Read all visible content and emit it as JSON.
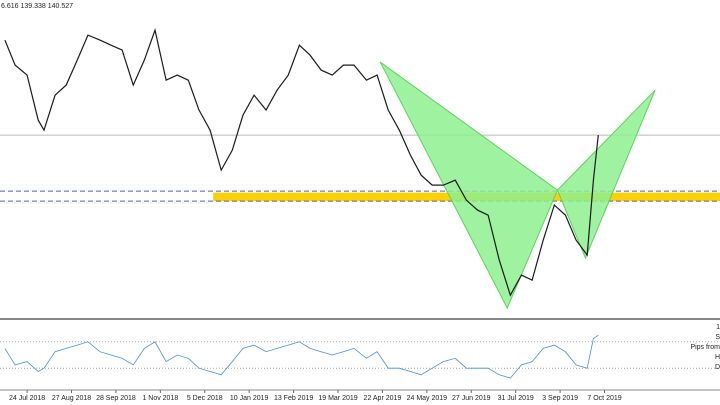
{
  "chart_data": {
    "type": "line",
    "info_text": "6.616 139.338 140.527",
    "color": "#1a1a1a",
    "x": [
      -0.5,
      -0.27,
      0,
      0.25,
      0.38,
      0.63,
      0.88,
      1.13,
      1.37,
      1.64,
      1.89,
      2.14,
      2.39,
      2.64,
      2.88,
      3.13,
      3.38,
      3.63,
      3.87,
      4.12,
      4.37,
      4.62,
      4.86,
      5.11,
      5.38,
      5.63,
      5.88,
      6.13,
      6.37,
      6.62,
      6.87,
      7.12,
      7.36,
      7.64,
      7.88,
      8.13,
      8.38,
      8.63,
      8.87,
      9.12,
      9.37,
      9.64,
      9.89,
      10.14,
      10.38,
      10.63,
      10.88,
      11.13,
      11.37,
      11.62,
      11.87,
      12.12,
      12.36,
      12.61,
      12.75,
      12.86
    ],
    "values": [
      148.91,
      146.79,
      145.95,
      142.14,
      141.29,
      144.25,
      145.1,
      147.22,
      149.33,
      148.91,
      148.48,
      148.06,
      145.1,
      147.22,
      149.75,
      145.52,
      145.95,
      145.52,
      142.99,
      141.29,
      137.91,
      139.6,
      142.56,
      144.25,
      142.99,
      144.68,
      145.95,
      148.48,
      147.64,
      146.37,
      145.95,
      146.79,
      146.79,
      145.52,
      145.95,
      142.99,
      141.29,
      139.18,
      137.49,
      136.64,
      136.64,
      137.06,
      135.37,
      134.53,
      134.1,
      130.3,
      127.33,
      129.03,
      128.6,
      131.99,
      134.95,
      134.1,
      131.99,
      130.72,
      137.06,
      140.87
    ],
    "xlim": [
      -0.61,
      15.6
    ],
    "ylim": [
      125.4,
      152.3
    ],
    "xticks": [
      {
        "value": 0,
        "label": "24 Jul 2018"
      },
      {
        "value": 1,
        "label": "27 Aug 2018"
      },
      {
        "value": 2,
        "label": "28 Sep 2018"
      },
      {
        "value": 3,
        "label": "1 Nov 2018"
      },
      {
        "value": 4,
        "label": "5 Dec 2018"
      },
      {
        "value": 5,
        "label": "10 Jan 2019"
      },
      {
        "value": 6,
        "label": "13 Feb 2019"
      },
      {
        "value": 7,
        "label": "19 Mar 2019"
      },
      {
        "value": 8,
        "label": "22 Apr 2019"
      },
      {
        "value": 9,
        "label": "24 May 2019"
      },
      {
        "value": 10,
        "label": "27 Jun 2019"
      },
      {
        "value": 11,
        "label": "31 Jul 2019"
      },
      {
        "value": 12,
        "label": "3 Sep 2019"
      },
      {
        "value": 13,
        "label": "7 Oct 2019"
      }
    ],
    "zone": {
      "x_start": 4.19,
      "ylim": [
        135.3,
        136.0
      ],
      "color": "#ffd000"
    },
    "dashed_levels": [
      136.13,
      135.29
    ],
    "price_level": 140.87,
    "pattern": {
      "color": "#8ef08e",
      "x": [
        7.95,
        10.81,
        11.94,
        12.57,
        14.14
      ],
      "y": [
        147.05,
        126.24,
        136.22,
        130.47,
        144.68
      ]
    },
    "oscillator": {
      "color": "#4a90d9",
      "ylim": [
        0,
        100
      ],
      "levels": [
        70,
        30
      ],
      "values": [
        60,
        35,
        40,
        25,
        30,
        55,
        60,
        65,
        70,
        55,
        50,
        45,
        35,
        60,
        70,
        40,
        50,
        45,
        30,
        25,
        20,
        40,
        60,
        65,
        55,
        60,
        65,
        70,
        60,
        55,
        50,
        55,
        60,
        45,
        55,
        30,
        30,
        25,
        20,
        30,
        40,
        45,
        30,
        30,
        30,
        20,
        15,
        35,
        40,
        60,
        65,
        55,
        35,
        30,
        75,
        80
      ]
    },
    "side_texts": [
      "1",
      "S",
      "Pips from",
      "H",
      "D"
    ]
  }
}
